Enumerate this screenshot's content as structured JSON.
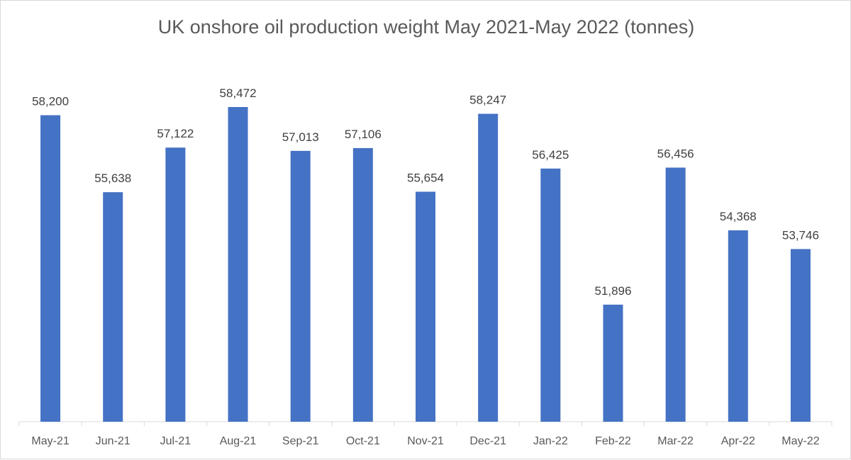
{
  "chart_data": {
    "type": "bar",
    "title": "UK onshore oil production weight May 2021-May 2022 (tonnes)",
    "xlabel": "",
    "ylabel": "",
    "categories": [
      "May-21",
      "Jun-21",
      "Jul-21",
      "Aug-21",
      "Sep-21",
      "Oct-21",
      "Nov-21",
      "Dec-21",
      "Jan-22",
      "Feb-22",
      "Mar-22",
      "Apr-22",
      "May-22"
    ],
    "values": [
      58200,
      55638,
      57122,
      58472,
      57013,
      57106,
      55654,
      58247,
      56425,
      51896,
      56456,
      54368,
      53746
    ],
    "data_labels": [
      "58,200",
      "55,638",
      "57,122",
      "58,472",
      "57,013",
      "57,106",
      "55,654",
      "58,247",
      "56,425",
      "51,896",
      "56,456",
      "54,368",
      "53,746"
    ],
    "ylim": [
      48000,
      59000
    ],
    "grid": false,
    "legend": "none",
    "bar_color": "#4472c4"
  }
}
